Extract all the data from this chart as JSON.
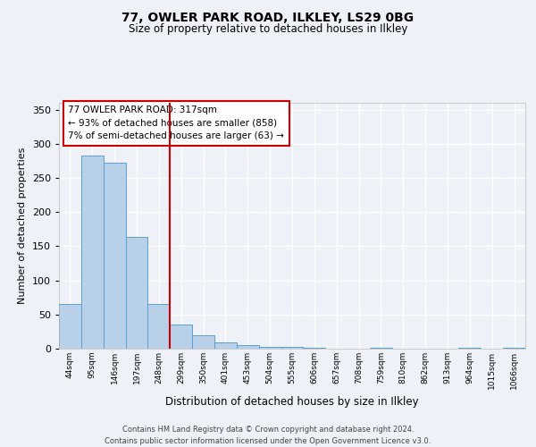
{
  "title1": "77, OWLER PARK ROAD, ILKLEY, LS29 0BG",
  "title2": "Size of property relative to detached houses in Ilkley",
  "xlabel": "Distribution of detached houses by size in Ilkley",
  "ylabel": "Number of detached properties",
  "categories": [
    "44sqm",
    "95sqm",
    "146sqm",
    "197sqm",
    "248sqm",
    "299sqm",
    "350sqm",
    "401sqm",
    "453sqm",
    "504sqm",
    "555sqm",
    "606sqm",
    "657sqm",
    "708sqm",
    "759sqm",
    "810sqm",
    "862sqm",
    "913sqm",
    "964sqm",
    "1015sqm",
    "1066sqm"
  ],
  "values": [
    65,
    283,
    272,
    163,
    65,
    35,
    19,
    9,
    5,
    3,
    2,
    1,
    0,
    0,
    1,
    0,
    0,
    0,
    1,
    0,
    1
  ],
  "bar_color": "#b8d0e8",
  "bar_edge_color": "#5a9fd4",
  "vline_x_index": 5,
  "vline_color": "#cc0000",
  "annotation_box_text": "77 OWLER PARK ROAD: 317sqm\n← 93% of detached houses are smaller (858)\n7% of semi-detached houses are larger (63) →",
  "annotation_box_color": "#cc0000",
  "ylim": [
    0,
    360
  ],
  "yticks": [
    0,
    50,
    100,
    150,
    200,
    250,
    300,
    350
  ],
  "footer_text": "Contains HM Land Registry data © Crown copyright and database right 2024.\nContains public sector information licensed under the Open Government Licence v3.0.",
  "bg_color": "#eef2f8",
  "plot_bg_color": "#eef2f8",
  "grid_color": "#ffffff"
}
